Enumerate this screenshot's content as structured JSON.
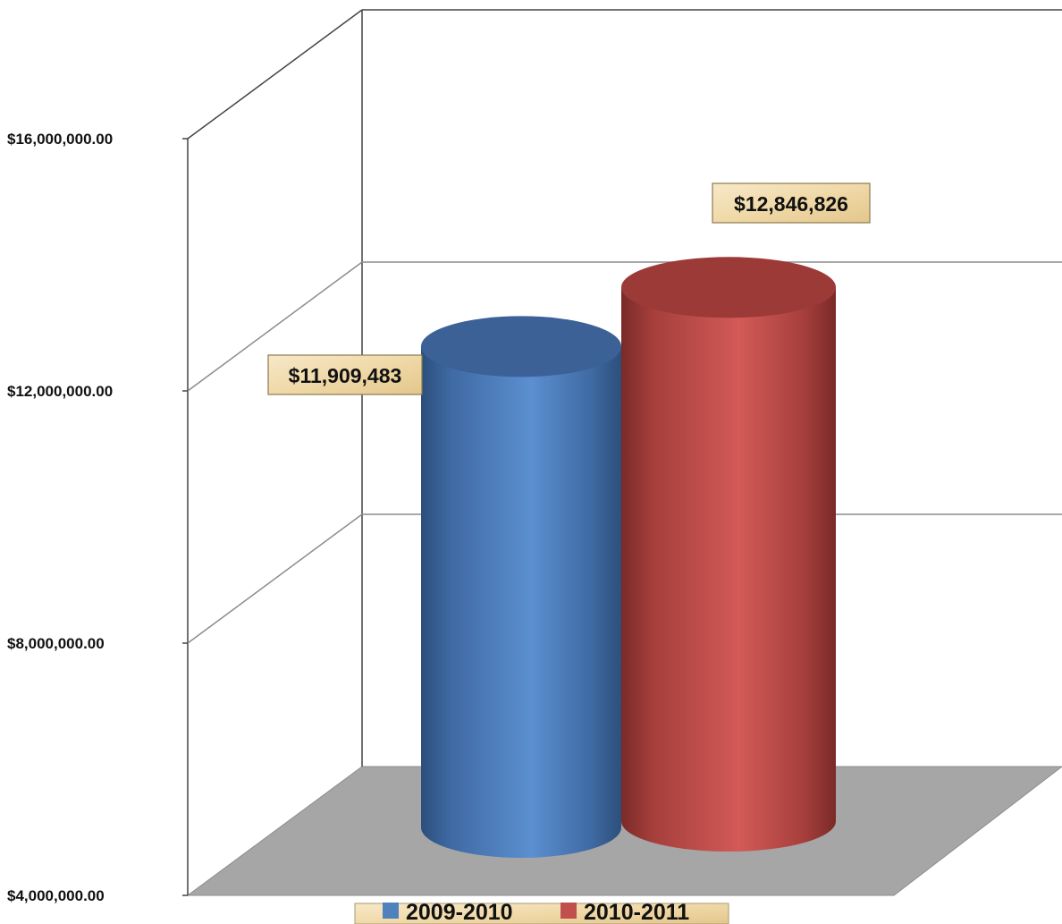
{
  "chart_data": {
    "type": "bar",
    "style": "3d-cylinder",
    "categories": [
      ""
    ],
    "series": [
      {
        "name": "2009-2010",
        "values": [
          11909483
        ],
        "label": "$11,909,483",
        "color": "#4f81bd"
      },
      {
        "name": "2010-2011",
        "values": [
          12846826
        ],
        "label": "$12,846,826",
        "color": "#c0504d"
      }
    ],
    "ylim": [
      4000000,
      16000000
    ],
    "yticks": [
      4000000,
      8000000,
      12000000,
      16000000
    ],
    "ytick_labels": [
      "$4,000,000.00",
      "$8,000,000.00",
      "$12,000,000.00",
      "$16,000,000.00"
    ],
    "grid": true,
    "legend": "bottom",
    "floor_color": "#a6a6a6",
    "label_box_color": "#f2dcb4"
  }
}
